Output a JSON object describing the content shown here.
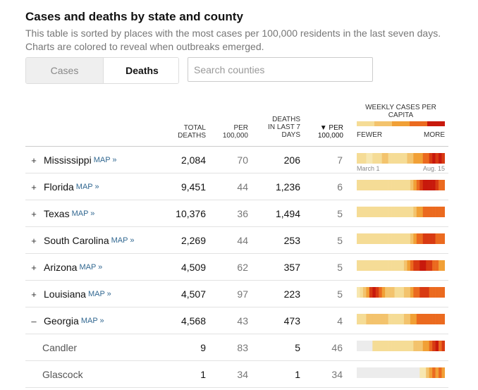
{
  "header": {
    "title": "Cases and deaths by state and county",
    "subtitle": "This table is sorted by places with the most cases per 100,000 residents in the last seven days. Charts are colored to reveal when outbreaks emerged."
  },
  "toggle": {
    "cases_label": "Cases",
    "deaths_label": "Deaths",
    "selected": "Deaths"
  },
  "search": {
    "placeholder": "Search counties",
    "value": ""
  },
  "columns": {
    "total_deaths": "TOTAL DEATHS",
    "per_100k": "PER 100,000",
    "deaths_7d": "DEATHS IN LAST 7 DAYS",
    "per_100k_7d": "▼ PER 100,000",
    "weekly": "WEEKLY CASES PER CAPITA",
    "fewer": "FEWER",
    "more": "MORE"
  },
  "legend_colors": [
    "#f5dc96",
    "#f3c36d",
    "#f1a036",
    "#eb6a1f",
    "#c8190c"
  ],
  "spark_colors": [
    "#ececec",
    "#f7e7b0",
    "#f5dc96",
    "#f3c36d",
    "#f1a036",
    "#eb6a1f",
    "#d83a12",
    "#c8190c"
  ],
  "spark_dates": {
    "start": "March 1",
    "end": "Aug. 15"
  },
  "map_label": "MAP »",
  "rows": [
    {
      "expand": "+",
      "name": "Mississippi",
      "map": true,
      "total": "2,084",
      "per": "70",
      "d7": "206",
      "per7": "7",
      "weeks": [
        2,
        2,
        2,
        1,
        1,
        2,
        2,
        2,
        3,
        3,
        2,
        2,
        2,
        2,
        2,
        2,
        3,
        3,
        4,
        4,
        4,
        5,
        5,
        6,
        7,
        6,
        7,
        6
      ]
    },
    {
      "expand": "+",
      "name": "Florida",
      "map": true,
      "total": "9,451",
      "per": "44",
      "d7": "1,236",
      "per7": "6",
      "weeks": [
        2,
        2,
        2,
        2,
        2,
        2,
        2,
        2,
        2,
        2,
        2,
        2,
        2,
        2,
        2,
        2,
        2,
        3,
        4,
        5,
        6,
        7,
        7,
        7,
        7,
        6,
        5,
        5
      ]
    },
    {
      "expand": "+",
      "name": "Texas",
      "map": true,
      "total": "10,376",
      "per": "36",
      "d7": "1,494",
      "per7": "5",
      "weeks": [
        2,
        2,
        2,
        2,
        2,
        2,
        2,
        2,
        2,
        2,
        2,
        2,
        2,
        2,
        2,
        2,
        2,
        2,
        3,
        4,
        4,
        5,
        5,
        5,
        5,
        5,
        5,
        5
      ]
    },
    {
      "expand": "+",
      "name": "South Carolina",
      "map": true,
      "total": "2,269",
      "per": "44",
      "d7": "253",
      "per7": "5",
      "weeks": [
        2,
        2,
        2,
        2,
        2,
        2,
        2,
        2,
        2,
        2,
        2,
        2,
        2,
        2,
        2,
        2,
        2,
        3,
        4,
        5,
        5,
        6,
        6,
        6,
        6,
        5,
        5,
        5
      ]
    },
    {
      "expand": "+",
      "name": "Arizona",
      "map": true,
      "total": "4,509",
      "per": "62",
      "d7": "357",
      "per7": "5",
      "weeks": [
        2,
        2,
        2,
        2,
        2,
        2,
        2,
        2,
        2,
        2,
        2,
        2,
        2,
        2,
        2,
        3,
        4,
        5,
        6,
        6,
        7,
        7,
        6,
        6,
        5,
        5,
        4,
        4
      ]
    },
    {
      "expand": "+",
      "name": "Louisiana",
      "map": true,
      "total": "4,507",
      "per": "97",
      "d7": "223",
      "per7": "5",
      "weeks": [
        1,
        2,
        3,
        4,
        6,
        7,
        6,
        5,
        4,
        3,
        3,
        3,
        2,
        2,
        2,
        3,
        3,
        4,
        5,
        5,
        6,
        6,
        6,
        5,
        5,
        5,
        5,
        5
      ]
    },
    {
      "expand": "–",
      "name": "Georgia",
      "map": true,
      "total": "4,568",
      "per": "43",
      "d7": "473",
      "per7": "4",
      "weeks": [
        2,
        2,
        2,
        3,
        3,
        3,
        3,
        3,
        3,
        3,
        2,
        2,
        2,
        2,
        2,
        3,
        3,
        4,
        4,
        5,
        5,
        5,
        5,
        5,
        5,
        5,
        5,
        5
      ]
    },
    {
      "expand": "",
      "name": "Candler",
      "map": false,
      "total": "9",
      "per": "83",
      "d7": "5",
      "per7": "46",
      "county": true,
      "weeks": [
        0,
        0,
        0,
        0,
        0,
        2,
        2,
        2,
        2,
        2,
        2,
        2,
        2,
        2,
        2,
        2,
        2,
        2,
        3,
        3,
        3,
        4,
        4,
        5,
        6,
        7,
        5,
        6
      ]
    },
    {
      "expand": "",
      "name": "Glascock",
      "map": false,
      "total": "1",
      "per": "34",
      "d7": "1",
      "per7": "34",
      "county": true,
      "weeks": [
        0,
        0,
        0,
        0,
        0,
        0,
        0,
        0,
        0,
        0,
        0,
        0,
        0,
        0,
        0,
        0,
        0,
        0,
        0,
        0,
        1,
        1,
        3,
        4,
        5,
        4,
        5,
        4
      ]
    }
  ]
}
